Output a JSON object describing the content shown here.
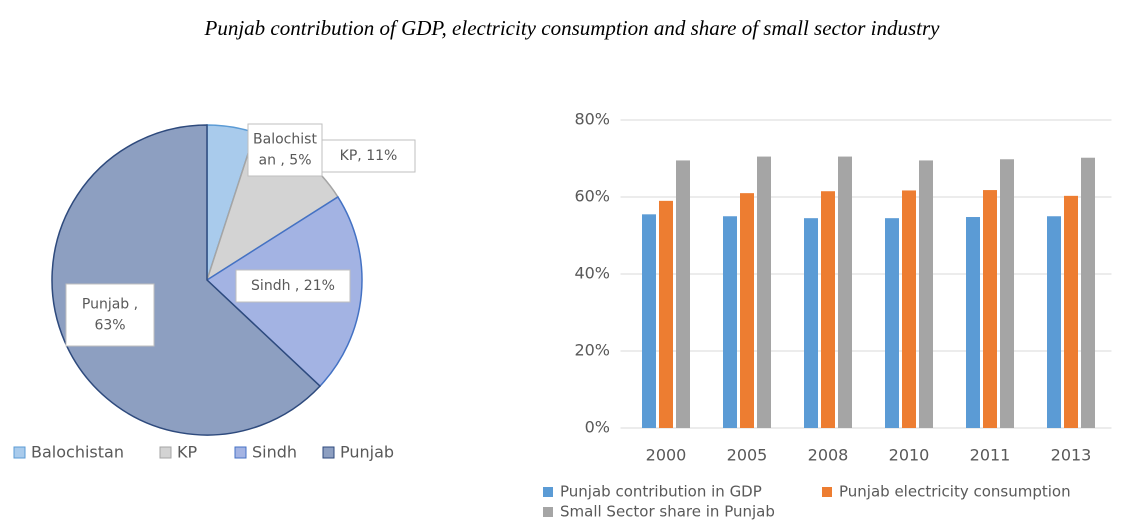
{
  "title": "Punjab contribution of GDP, electricity consumption and share of small sector industry",
  "chart_data": [
    {
      "type": "pie",
      "categories": [
        "Balochistan",
        "KP",
        "Sindh",
        "Punjab"
      ],
      "values": [
        5,
        11,
        21,
        63
      ],
      "value_labels": [
        [
          "Balochist",
          "an , 5%"
        ],
        [
          "KP, 11%"
        ],
        [
          "Sindh , 21%"
        ],
        [
          "Punjab ,",
          "63%"
        ]
      ],
      "colors": [
        "#a9cbec",
        "#d3d3d3",
        "#a3b3e3",
        "#8d9fc1"
      ],
      "edge_colors": [
        "#5b9bd5",
        "#a5a5a5",
        "#4472c4",
        "#2e4a7d"
      ],
      "legend": "bottom"
    },
    {
      "type": "bar",
      "categories": [
        "2000",
        "2005",
        "2008",
        "2010",
        "2011",
        "2013"
      ],
      "series": [
        {
          "name": "Punjab contribution in GDP",
          "color": "#5b9bd5",
          "values": [
            55.5,
            55,
            54.5,
            54.5,
            54.8,
            55
          ]
        },
        {
          "name": "Punjab electricity consumption",
          "color": "#ed7d31",
          "values": [
            59,
            61,
            61.5,
            61.7,
            61.8,
            60.3
          ]
        },
        {
          "name": "Small Sector share in Punjab",
          "color": "#a5a5a5",
          "values": [
            69.5,
            70.5,
            70.5,
            69.5,
            69.8,
            70.2
          ]
        }
      ],
      "ylim": [
        0,
        80
      ],
      "yticks": [
        {
          "value": 0,
          "label": "0%"
        },
        {
          "value": 20,
          "label": "20%"
        },
        {
          "value": 40,
          "label": "40%"
        },
        {
          "value": 60,
          "label": "60%"
        },
        {
          "value": 80,
          "label": "80%"
        }
      ],
      "grid": true,
      "legend": "bottom"
    }
  ]
}
